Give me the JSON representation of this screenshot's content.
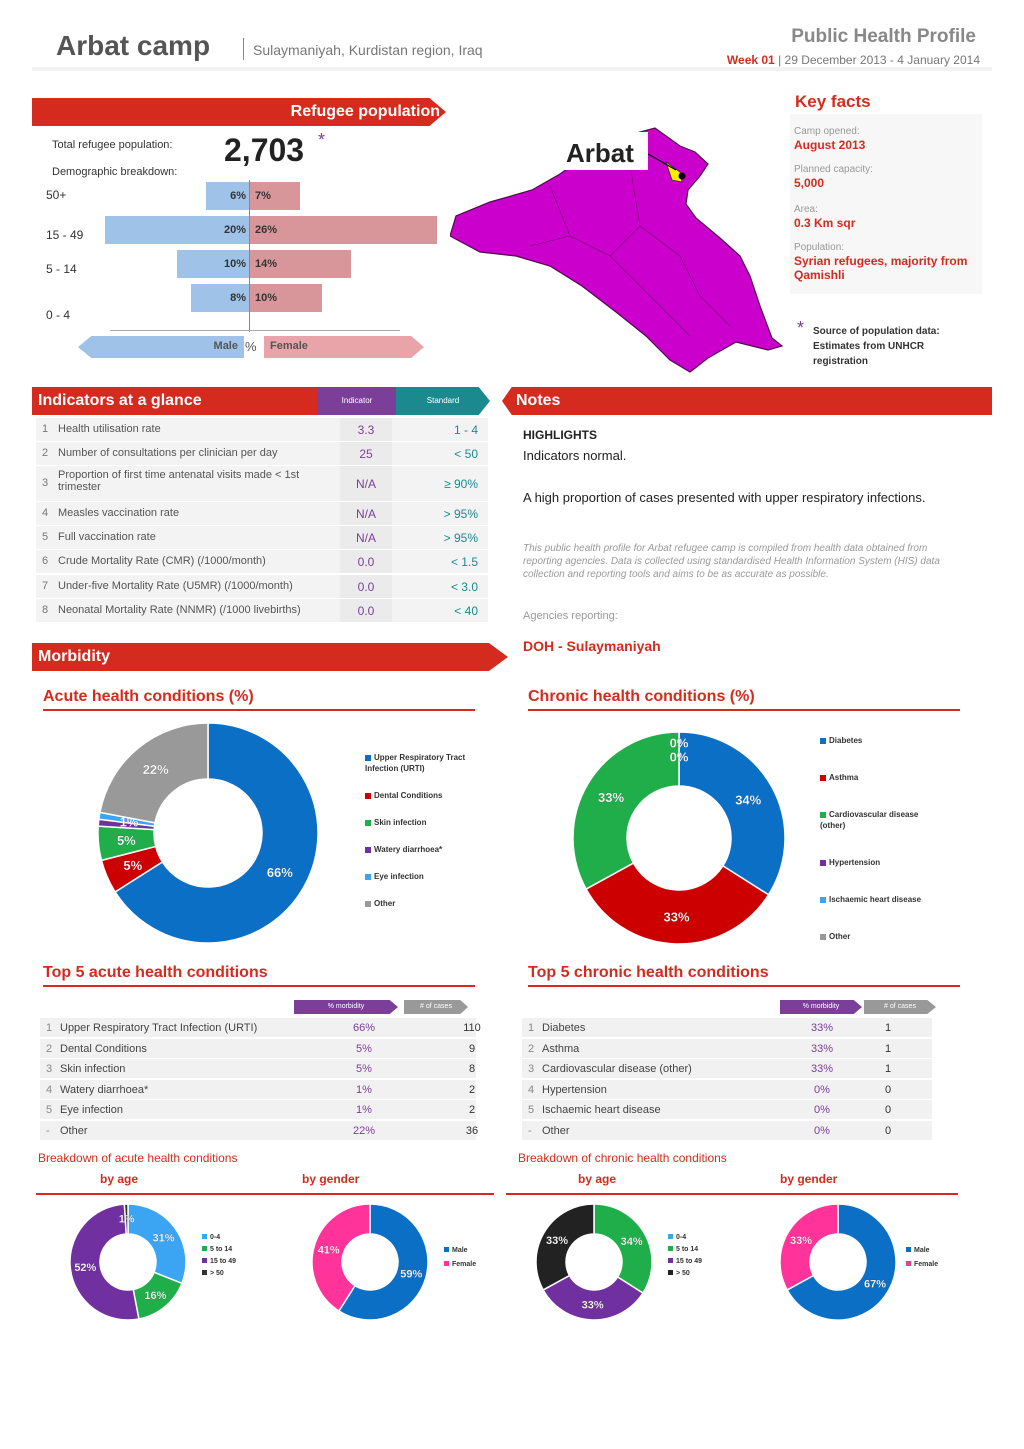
{
  "header": {
    "title": "Arbat camp",
    "location": "Sulaymaniyah, Kurdistan region, Iraq",
    "report_title": "Public Health Profile",
    "week": "Week 01",
    "date_range": "| 29 December 2013 - 4 January 2014"
  },
  "refugee_population": {
    "banner": "Refugee population",
    "total_label": "Total refugee population:",
    "total_value": "2,703",
    "asterisk": "*",
    "demographic_label": "Demographic breakdown:",
    "axis_male": "Male",
    "axis_pct": "%",
    "axis_female": "Female",
    "groups": [
      {
        "label": "50+",
        "male": 6,
        "female": 7,
        "male_text": "6%",
        "female_text": "7%"
      },
      {
        "label": "15 - 49",
        "male": 20,
        "female": 26,
        "male_text": "20%",
        "female_text": "26%"
      },
      {
        "label": "5 - 14",
        "male": 10,
        "female": 14,
        "male_text": "10%",
        "female_text": "14%"
      },
      {
        "label": "0 - 4",
        "male": 8,
        "female": 10,
        "male_text": "8%",
        "female_text": "10%"
      }
    ]
  },
  "map": {
    "label": "Arbat",
    "region_color": "#cc00cc"
  },
  "key_facts": {
    "title": "Key facts",
    "items": [
      {
        "label": "Camp opened:",
        "value": "August 2013"
      },
      {
        "label": "Planned capacity:",
        "value": "5,000"
      },
      {
        "label": "Area:",
        "value": "0.3 Km sqr"
      },
      {
        "label": "Population:",
        "value": "Syrian refugees, majority from Qamishli"
      }
    ],
    "source_asterisk": "*",
    "source_text": "Source of population data: Estimates from UNHCR registration"
  },
  "indicators": {
    "banner": "Indicators at a glance",
    "col_indicator": "Indicator",
    "col_standard": "Standard",
    "rows": [
      {
        "n": "1",
        "label": "Health utilisation rate",
        "value": "3.3",
        "standard": "1 - 4"
      },
      {
        "n": "2",
        "label": "Number of consultations per clinician per day",
        "value": "25",
        "standard": "< 50"
      },
      {
        "n": "3",
        "label": "Proportion of first time antenatal visits made < 1st trimester",
        "value": "N/A",
        "standard": "≥ 90%"
      },
      {
        "n": "4",
        "label": "Measles vaccination rate",
        "value": "N/A",
        "standard": "> 95%"
      },
      {
        "n": "5",
        "label": "Full vaccination rate",
        "value": "N/A",
        "standard": "> 95%"
      },
      {
        "n": "6",
        "label": "Crude Mortality Rate (CMR) (/1000/month)",
        "value": "0.0",
        "standard": "< 1.5"
      },
      {
        "n": "7",
        "label": "Under-five Mortality Rate (U5MR) (/1000/month)",
        "value": "0.0",
        "standard": "< 3.0"
      },
      {
        "n": "8",
        "label": "Neonatal Mortality Rate (NNMR) (/1000 livebirths)",
        "value": "0.0",
        "standard": "< 40"
      }
    ]
  },
  "notes": {
    "banner": "Notes",
    "highlights_title": "HIGHLIGHTS",
    "highlights_line": "Indicators normal.",
    "para": "A high proportion of cases presented with upper respiratory infections.",
    "disclaimer": "This public health profile for Arbat refugee camp is compiled from health data obtained from reporting agencies. Data is collected using standardised Health Information System (HIS) data collection and reporting tools and aims to be as accurate as possible.",
    "agencies_label": "Agencies reporting:",
    "agency": "DOH - Sulaymaniyah"
  },
  "morbidity": {
    "banner": "Morbidity",
    "acute_title": "Acute health conditions (%)",
    "chronic_title": "Chronic health conditions (%)",
    "top_acute_title": "Top 5 acute health conditions",
    "top_chronic_title": "Top 5 chronic health conditions",
    "col_morbidity": "% morbidity",
    "col_cases": "# of cases",
    "top_acute": [
      {
        "n": "1",
        "label": "Upper Respiratory Tract Infection (URTI)",
        "pct": "66%",
        "cases": "110"
      },
      {
        "n": "2",
        "label": "Dental Conditions",
        "pct": "5%",
        "cases": "9"
      },
      {
        "n": "3",
        "label": "Skin infection",
        "pct": "5%",
        "cases": "8"
      },
      {
        "n": "4",
        "label": "Watery diarrhoea*",
        "pct": "1%",
        "cases": "2"
      },
      {
        "n": "5",
        "label": "Eye infection",
        "pct": "1%",
        "cases": "2"
      },
      {
        "n": "-",
        "label": "Other",
        "pct": "22%",
        "cases": "36"
      }
    ],
    "top_chronic": [
      {
        "n": "1",
        "label": "Diabetes",
        "pct": "33%",
        "cases": "1"
      },
      {
        "n": "2",
        "label": "Asthma",
        "pct": "33%",
        "cases": "1"
      },
      {
        "n": "3",
        "label": "Cardiovascular disease (other)",
        "pct": "33%",
        "cases": "1"
      },
      {
        "n": "4",
        "label": "Hypertension",
        "pct": "0%",
        "cases": "0"
      },
      {
        "n": "5",
        "label": "Ischaemic heart disease",
        "pct": "0%",
        "cases": "0"
      },
      {
        "n": "-",
        "label": "Other",
        "pct": "0%",
        "cases": "0"
      }
    ],
    "breakdown_acute_title": "Breakdown of acute health conditions",
    "breakdown_chronic_title": "Breakdown of chronic health conditions",
    "by_age": "by age",
    "by_gender": "by gender"
  },
  "chart_data": [
    {
      "type": "pie",
      "title": "Acute health conditions (%)",
      "categories": [
        "Upper Respiratory Tract Infection (URTI)",
        "Dental Conditions",
        "Skin infection",
        "Watery diarrhoea*",
        "Eye infection",
        "Other"
      ],
      "legend_labels": [
        "Upper Respiratory Tract Infection (URTI)",
        "Dental Conditions",
        "Skin infection",
        "Watery diarrhoea*",
        "Eye infection",
        "Other"
      ],
      "values": [
        66,
        5,
        5,
        1,
        1,
        22
      ],
      "labels": [
        "66%",
        "5%",
        "5%",
        "1%",
        "1%",
        "22%"
      ],
      "colors": [
        "#0b6fc6",
        "#cc0000",
        "#1fae4a",
        "#7030a0",
        "#3ba4f3",
        "#999999"
      ],
      "legend": "right"
    },
    {
      "type": "pie",
      "title": "Chronic health conditions (%)",
      "categories": [
        "Diabetes",
        "Asthma",
        "Cardiovascular disease (other)",
        "Hypertension",
        "Ischaemic heart disease",
        "Other"
      ],
      "legend_labels": [
        "Diabetes",
        "Asthma",
        "Cardiovascular disease (other)",
        "Hypertension",
        "Ischaemic heart disease",
        "Other"
      ],
      "values": [
        34,
        33,
        33,
        0,
        0,
        0
      ],
      "labels": [
        "34%",
        "33%",
        "33%",
        "0%",
        "0%",
        ""
      ],
      "colors": [
        "#0b6fc6",
        "#cc0000",
        "#1fae4a",
        "#7030a0",
        "#3ba4f3",
        "#999999"
      ],
      "legend": "right"
    },
    {
      "type": "pie",
      "title": "by age",
      "categories": [
        "0-4",
        "5 to 14",
        "15 to 49",
        "> 50"
      ],
      "legend_labels": [
        "0-4",
        "5 to 14",
        "15 to 49",
        "> 50"
      ],
      "values": [
        31,
        16,
        52,
        1
      ],
      "labels": [
        "31%",
        "16%",
        "52%",
        "1%"
      ],
      "colors": [
        "#3ba4f3",
        "#1fae4a",
        "#7030a0",
        "#333333"
      ],
      "legend": "right"
    },
    {
      "type": "pie",
      "title": "by gender",
      "categories": [
        "Male",
        "Female"
      ],
      "legend_labels": [
        "Male",
        "Female"
      ],
      "values": [
        59,
        41
      ],
      "labels": [
        "59%",
        "41%"
      ],
      "colors": [
        "#0b6fc6",
        "#ff3399"
      ],
      "legend": "right"
    },
    {
      "type": "pie",
      "title": "by age",
      "categories": [
        "0-4",
        "5 to 14",
        "15 to 49",
        "> 50"
      ],
      "legend_labels": [
        "0-4",
        "5 to 14",
        "15 to 49",
        "> 50"
      ],
      "values": [
        0,
        34,
        33,
        33
      ],
      "labels": [
        "0%",
        "34%",
        "33%",
        "33%"
      ],
      "colors": [
        "#3ba4f3",
        "#1fae4a",
        "#7030a0",
        "#222222"
      ],
      "legend": "right"
    },
    {
      "type": "pie",
      "title": "by gender",
      "categories": [
        "Male",
        "Female"
      ],
      "legend_labels": [
        "Male",
        "Female"
      ],
      "values": [
        67,
        33
      ],
      "labels": [
        "67%",
        "33%"
      ],
      "colors": [
        "#0b6fc6",
        "#ff3399"
      ],
      "legend": "right"
    }
  ]
}
